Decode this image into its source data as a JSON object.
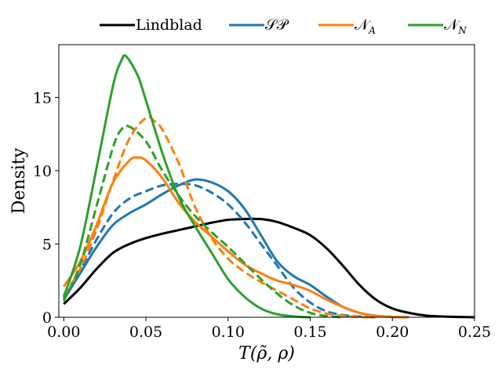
{
  "chart_data": {
    "type": "line",
    "title": "",
    "xlabel": "T(ρ̃, ρ)",
    "ylabel": "Density",
    "xlim": [
      -0.003,
      0.25
    ],
    "ylim": [
      0,
      18.6
    ],
    "xticks": [
      0.0,
      0.05,
      0.1,
      0.15,
      0.2,
      0.25
    ],
    "xtick_labels": [
      "0.00",
      "0.05",
      "0.10",
      "0.15",
      "0.20",
      "0.25"
    ],
    "yticks": [
      0,
      5,
      10,
      15
    ],
    "ytick_labels": [
      "0",
      "5",
      "10",
      "15"
    ],
    "grid": false,
    "legend_position": "top, above plot, horizontal",
    "legend": [
      {
        "key": "lindblad",
        "label": "Lindblad",
        "base": "",
        "sub": "",
        "color": "#000000"
      },
      {
        "key": "sp",
        "label": "𝒮𝒫",
        "base": "",
        "sub": "",
        "color": "#1f77b4"
      },
      {
        "key": "na",
        "label": "",
        "base": "𝒩",
        "sub": "A",
        "color": "#ff7f0e"
      },
      {
        "key": "nn",
        "label": "",
        "base": "𝒩",
        "sub": "N",
        "color": "#2ca02c"
      }
    ],
    "series": [
      {
        "name": "Lindblad",
        "color": "#000000",
        "dashed": false,
        "points": [
          [
            0,
            0.9
          ],
          [
            0.01,
            2.0
          ],
          [
            0.02,
            3.3
          ],
          [
            0.03,
            4.4
          ],
          [
            0.04,
            5.0
          ],
          [
            0.05,
            5.4
          ],
          [
            0.06,
            5.7
          ],
          [
            0.07,
            5.95
          ],
          [
            0.08,
            6.2
          ],
          [
            0.09,
            6.45
          ],
          [
            0.1,
            6.65
          ],
          [
            0.11,
            6.7
          ],
          [
            0.12,
            6.7
          ],
          [
            0.13,
            6.5
          ],
          [
            0.14,
            6.1
          ],
          [
            0.15,
            5.6
          ],
          [
            0.16,
            4.7
          ],
          [
            0.17,
            3.5
          ],
          [
            0.18,
            2.2
          ],
          [
            0.19,
            1.2
          ],
          [
            0.2,
            0.6
          ],
          [
            0.21,
            0.3
          ],
          [
            0.22,
            0.12
          ],
          [
            0.23,
            0.05
          ],
          [
            0.24,
            0.02
          ],
          [
            0.25,
            0.0
          ]
        ]
      },
      {
        "name": "𝒮𝒫 (solid)",
        "color": "#1f77b4",
        "dashed": false,
        "points": [
          [
            0,
            1.2
          ],
          [
            0.01,
            3.0
          ],
          [
            0.02,
            4.8
          ],
          [
            0.03,
            6.3
          ],
          [
            0.04,
            7.1
          ],
          [
            0.05,
            7.7
          ],
          [
            0.06,
            8.4
          ],
          [
            0.07,
            9.0
          ],
          [
            0.08,
            9.4
          ],
          [
            0.09,
            9.2
          ],
          [
            0.1,
            8.6
          ],
          [
            0.11,
            7.4
          ],
          [
            0.12,
            5.6
          ],
          [
            0.13,
            3.8
          ],
          [
            0.14,
            2.8
          ],
          [
            0.15,
            2.2
          ],
          [
            0.16,
            1.4
          ],
          [
            0.17,
            0.7
          ],
          [
            0.18,
            0.3
          ],
          [
            0.19,
            0.1
          ],
          [
            0.2,
            0.03
          ],
          [
            0.21,
            0.0
          ]
        ]
      },
      {
        "name": "𝒮𝒫 (dashed)",
        "color": "#1f77b4",
        "dashed": true,
        "points": [
          [
            0,
            1.3
          ],
          [
            0.01,
            3.2
          ],
          [
            0.02,
            5.3
          ],
          [
            0.03,
            7.1
          ],
          [
            0.04,
            8.1
          ],
          [
            0.05,
            8.6
          ],
          [
            0.06,
            9.0
          ],
          [
            0.07,
            9.1
          ],
          [
            0.08,
            9.0
          ],
          [
            0.09,
            8.5
          ],
          [
            0.1,
            7.7
          ],
          [
            0.11,
            6.5
          ],
          [
            0.12,
            5.0
          ],
          [
            0.13,
            3.5
          ],
          [
            0.14,
            2.0
          ],
          [
            0.15,
            1.0
          ],
          [
            0.16,
            0.4
          ],
          [
            0.17,
            0.15
          ],
          [
            0.18,
            0.05
          ],
          [
            0.19,
            0.0
          ]
        ]
      },
      {
        "name": "𝒩A (solid)",
        "color": "#ff7f0e",
        "dashed": false,
        "points": [
          [
            0,
            2.1
          ],
          [
            0.01,
            3.8
          ],
          [
            0.02,
            6.3
          ],
          [
            0.03,
            9.2
          ],
          [
            0.04,
            10.7
          ],
          [
            0.045,
            10.9
          ],
          [
            0.05,
            10.7
          ],
          [
            0.06,
            9.5
          ],
          [
            0.07,
            7.8
          ],
          [
            0.08,
            6.5
          ],
          [
            0.09,
            5.5
          ],
          [
            0.1,
            4.5
          ],
          [
            0.11,
            3.6
          ],
          [
            0.12,
            3.0
          ],
          [
            0.13,
            2.5
          ],
          [
            0.14,
            2.2
          ],
          [
            0.15,
            1.8
          ],
          [
            0.16,
            1.2
          ],
          [
            0.17,
            0.7
          ],
          [
            0.18,
            0.3
          ],
          [
            0.19,
            0.1
          ],
          [
            0.2,
            0.03
          ],
          [
            0.21,
            0.0
          ]
        ]
      },
      {
        "name": "𝒩A (dashed)",
        "color": "#ff7f0e",
        "dashed": true,
        "points": [
          [
            0,
            1.5
          ],
          [
            0.01,
            3.3
          ],
          [
            0.02,
            6.0
          ],
          [
            0.03,
            9.3
          ],
          [
            0.04,
            12.2
          ],
          [
            0.05,
            13.6
          ],
          [
            0.055,
            13.4
          ],
          [
            0.06,
            12.8
          ],
          [
            0.07,
            10.5
          ],
          [
            0.08,
            7.5
          ],
          [
            0.09,
            5.4
          ],
          [
            0.1,
            4.0
          ],
          [
            0.11,
            3.1
          ],
          [
            0.12,
            2.4
          ],
          [
            0.13,
            1.8
          ],
          [
            0.14,
            1.2
          ],
          [
            0.15,
            0.6
          ],
          [
            0.16,
            0.25
          ],
          [
            0.17,
            0.1
          ],
          [
            0.18,
            0.02
          ],
          [
            0.19,
            0.0
          ]
        ]
      },
      {
        "name": "𝒩N (solid)",
        "color": "#2ca02c",
        "dashed": false,
        "points": [
          [
            0,
            1.4
          ],
          [
            0.01,
            4.8
          ],
          [
            0.02,
            10.2
          ],
          [
            0.03,
            15.8
          ],
          [
            0.035,
            17.5
          ],
          [
            0.038,
            17.8
          ],
          [
            0.045,
            16.5
          ],
          [
            0.05,
            14.8
          ],
          [
            0.06,
            11.2
          ],
          [
            0.07,
            8.2
          ],
          [
            0.08,
            6.2
          ],
          [
            0.09,
            4.4
          ],
          [
            0.1,
            2.6
          ],
          [
            0.11,
            1.4
          ],
          [
            0.12,
            0.6
          ],
          [
            0.13,
            0.2
          ],
          [
            0.14,
            0.06
          ],
          [
            0.15,
            0.0
          ]
        ]
      },
      {
        "name": "𝒩N (dashed)",
        "color": "#2ca02c",
        "dashed": true,
        "points": [
          [
            0,
            1.1
          ],
          [
            0.01,
            3.6
          ],
          [
            0.02,
            7.6
          ],
          [
            0.03,
            11.6
          ],
          [
            0.035,
            12.8
          ],
          [
            0.04,
            13.0
          ],
          [
            0.05,
            12.0
          ],
          [
            0.06,
            10.0
          ],
          [
            0.07,
            8.3
          ],
          [
            0.08,
            6.9
          ],
          [
            0.09,
            5.8
          ],
          [
            0.1,
            4.8
          ],
          [
            0.11,
            3.7
          ],
          [
            0.12,
            2.6
          ],
          [
            0.13,
            1.6
          ],
          [
            0.14,
            0.8
          ],
          [
            0.15,
            0.3
          ],
          [
            0.16,
            0.08
          ],
          [
            0.17,
            0.0
          ]
        ]
      }
    ]
  }
}
